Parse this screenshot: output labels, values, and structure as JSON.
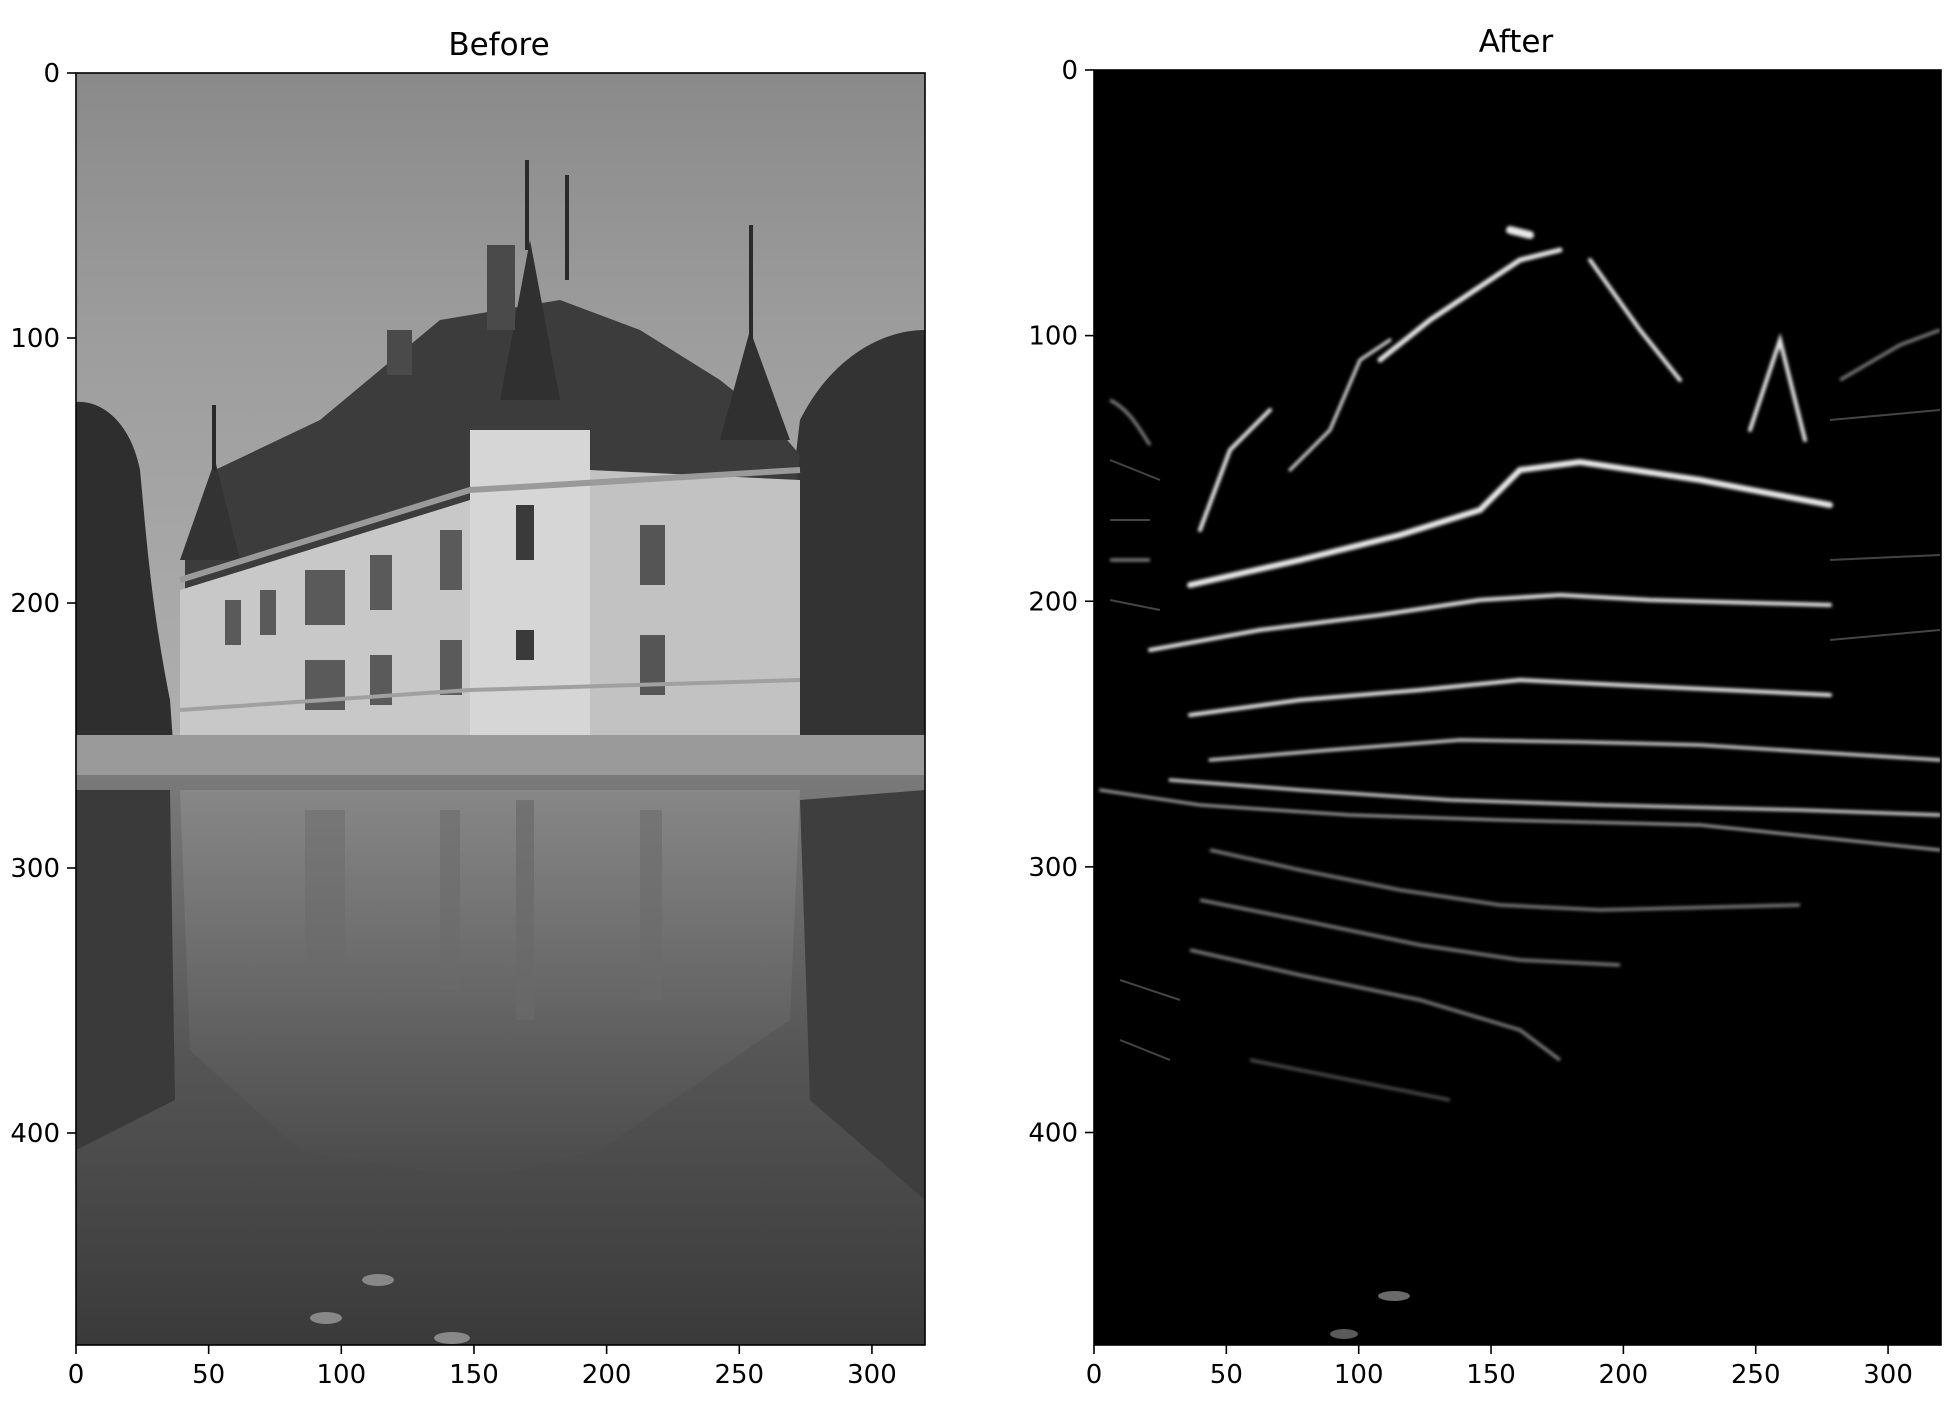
{
  "figure": {
    "background": "#ffffff",
    "axis_color": "#000000"
  },
  "chart_data": [
    {
      "type": "image",
      "title": "Before",
      "colormap": "gray",
      "xlim": [
        0,
        320
      ],
      "ylim": [
        480,
        0
      ],
      "x_ticks": [
        0,
        50,
        100,
        150,
        200,
        250,
        300
      ],
      "y_ticks": [
        0,
        100,
        200,
        300,
        400
      ],
      "content": "grayscale photograph of a château reflected in water"
    },
    {
      "type": "image",
      "title": "After",
      "colormap": "gray",
      "xlim": [
        0,
        320
      ],
      "ylim": [
        480,
        0
      ],
      "x_ticks": [
        0,
        50,
        100,
        150,
        200,
        250,
        300
      ],
      "y_ticks": [
        0,
        100,
        200,
        300,
        400
      ],
      "content": "edge-filtered version of the same image: bright horizontal edge lines on black"
    }
  ]
}
